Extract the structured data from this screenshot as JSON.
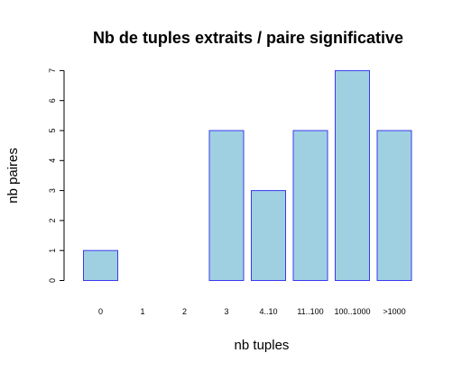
{
  "chart_data": {
    "type": "bar",
    "title": "Nb de tuples extraits / paire significative",
    "xlabel": "nb tuples",
    "ylabel": "nb paires",
    "categories": [
      "0",
      "1",
      "2",
      "3",
      "4..10",
      "11..100",
      "100..1000",
      ">1000"
    ],
    "values": [
      1,
      0,
      0,
      5,
      3,
      5,
      7,
      5
    ],
    "ylim": [
      0,
      7
    ],
    "yticks": [
      "0",
      "1",
      "2",
      "3",
      "4",
      "5",
      "6",
      "7"
    ],
    "grid": false,
    "bar_fill": "#9fd0e2",
    "bar_stroke": "#3a3af0"
  }
}
